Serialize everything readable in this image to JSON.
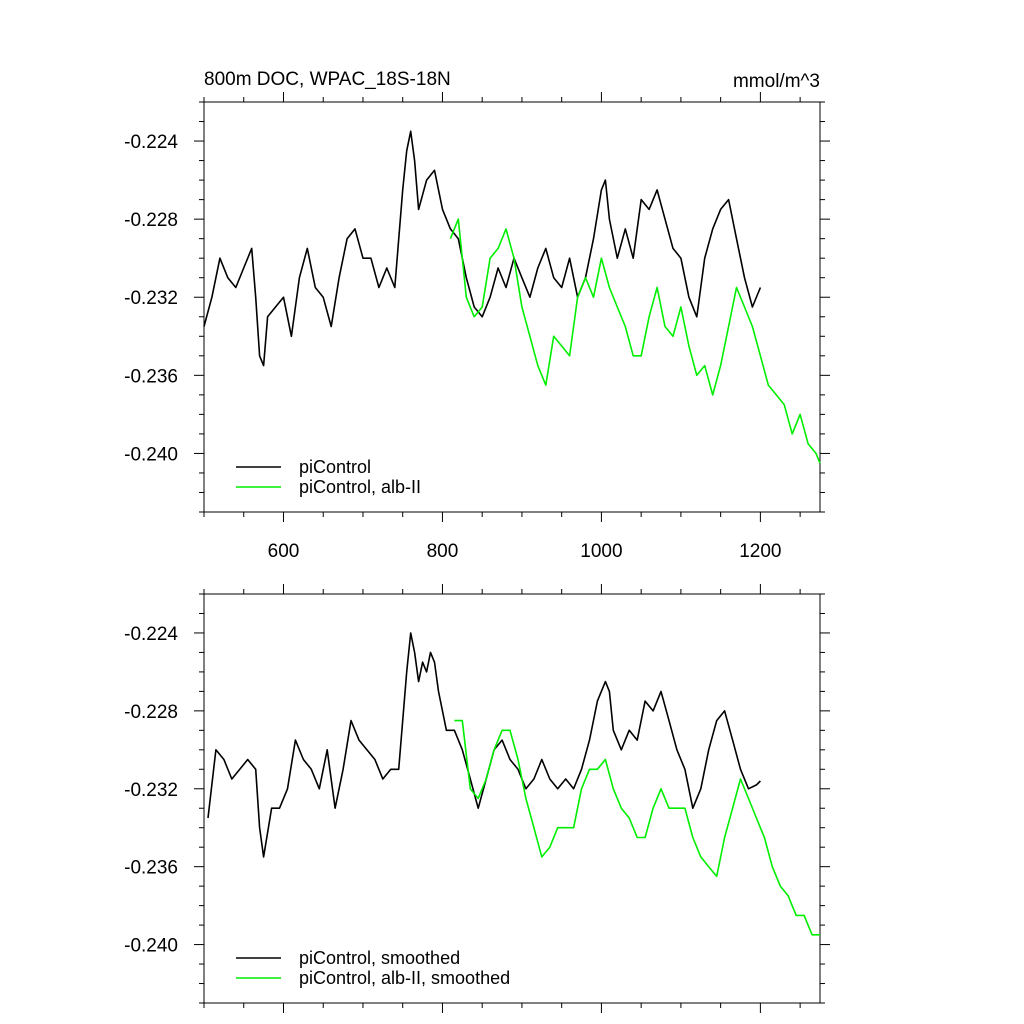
{
  "figure": {
    "title_left": "800m DOC, WPAC_18S-18N",
    "title_right": "mmol/m^3"
  },
  "chart_data": [
    {
      "type": "line",
      "title": "800m DOC, WPAC_18S-18N",
      "units": "mmol/m^3",
      "xlim": [
        500,
        1275
      ],
      "ylim": [
        -0.243,
        -0.222
      ],
      "xticks": [
        600,
        800,
        1000,
        1200
      ],
      "yticks": [
        -0.224,
        -0.228,
        -0.232,
        -0.236,
        -0.24
      ],
      "ytick_labels": [
        "-0.224",
        "-0.228",
        "-0.232",
        "-0.236",
        "-0.240"
      ],
      "xtick_labels": [
        "600",
        "800",
        "1000",
        "1200"
      ],
      "legend_position": "bottom-left",
      "series": [
        {
          "name": "piControl",
          "color": "#000000",
          "x": [
            500,
            510,
            520,
            530,
            540,
            550,
            560,
            565,
            570,
            575,
            580,
            590,
            600,
            610,
            620,
            630,
            640,
            650,
            660,
            670,
            680,
            690,
            700,
            710,
            720,
            730,
            740,
            750,
            755,
            760,
            765,
            770,
            780,
            790,
            800,
            810,
            820,
            830,
            840,
            850,
            860,
            870,
            880,
            890,
            900,
            910,
            920,
            930,
            940,
            950,
            960,
            970,
            980,
            990,
            1000,
            1005,
            1010,
            1020,
            1030,
            1040,
            1050,
            1060,
            1070,
            1080,
            1090,
            1100,
            1110,
            1120,
            1130,
            1140,
            1150,
            1160,
            1170,
            1180,
            1190,
            1200
          ],
          "y": [
            -0.2335,
            -0.232,
            -0.23,
            -0.231,
            -0.2315,
            -0.2305,
            -0.2295,
            -0.232,
            -0.235,
            -0.2355,
            -0.233,
            -0.2325,
            -0.232,
            -0.234,
            -0.231,
            -0.2295,
            -0.2315,
            -0.232,
            -0.2335,
            -0.231,
            -0.229,
            -0.2285,
            -0.23,
            -0.23,
            -0.2315,
            -0.2305,
            -0.2315,
            -0.2265,
            -0.2245,
            -0.2235,
            -0.225,
            -0.2275,
            -0.226,
            -0.2255,
            -0.2275,
            -0.2285,
            -0.229,
            -0.231,
            -0.2325,
            -0.233,
            -0.232,
            -0.2305,
            -0.2315,
            -0.23,
            -0.231,
            -0.232,
            -0.2305,
            -0.2295,
            -0.231,
            -0.2315,
            -0.23,
            -0.232,
            -0.231,
            -0.229,
            -0.2265,
            -0.226,
            -0.228,
            -0.23,
            -0.2285,
            -0.23,
            -0.227,
            -0.2275,
            -0.2265,
            -0.228,
            -0.2295,
            -0.23,
            -0.232,
            -0.233,
            -0.23,
            -0.2285,
            -0.2275,
            -0.227,
            -0.229,
            -0.231,
            -0.2325,
            -0.2315
          ]
        },
        {
          "name": "piControl, alb-II",
          "color": "#00ee00",
          "x": [
            810,
            820,
            830,
            840,
            850,
            860,
            870,
            880,
            890,
            900,
            910,
            920,
            930,
            940,
            950,
            960,
            970,
            980,
            990,
            1000,
            1010,
            1020,
            1030,
            1040,
            1050,
            1060,
            1070,
            1080,
            1090,
            1100,
            1110,
            1120,
            1130,
            1140,
            1150,
            1160,
            1170,
            1180,
            1190,
            1200,
            1210,
            1220,
            1230,
            1240,
            1250,
            1260,
            1270,
            1275
          ],
          "y": [
            -0.229,
            -0.228,
            -0.232,
            -0.233,
            -0.2325,
            -0.23,
            -0.2295,
            -0.2285,
            -0.23,
            -0.2325,
            -0.234,
            -0.2355,
            -0.2365,
            -0.234,
            -0.2345,
            -0.235,
            -0.232,
            -0.231,
            -0.232,
            -0.23,
            -0.2315,
            -0.2325,
            -0.2335,
            -0.235,
            -0.235,
            -0.233,
            -0.2315,
            -0.2335,
            -0.234,
            -0.2325,
            -0.2345,
            -0.236,
            -0.2355,
            -0.237,
            -0.2355,
            -0.2335,
            -0.2315,
            -0.2325,
            -0.2335,
            -0.235,
            -0.2365,
            -0.237,
            -0.2375,
            -0.239,
            -0.238,
            -0.2395,
            -0.24,
            -0.2405
          ]
        }
      ]
    },
    {
      "type": "line",
      "xlim": [
        500,
        1275
      ],
      "ylim": [
        -0.243,
        -0.222
      ],
      "xticks": [
        600,
        800,
        1000,
        1200
      ],
      "yticks": [
        -0.224,
        -0.228,
        -0.232,
        -0.236,
        -0.24
      ],
      "ytick_labels": [
        "-0.224",
        "-0.228",
        "-0.232",
        "-0.236",
        "-0.240"
      ],
      "legend_position": "bottom-left",
      "series": [
        {
          "name": "piControl, smoothed",
          "color": "#000000",
          "x": [
            505,
            515,
            525,
            535,
            545,
            555,
            565,
            570,
            575,
            585,
            595,
            605,
            615,
            625,
            635,
            645,
            655,
            665,
            675,
            685,
            695,
            705,
            715,
            725,
            735,
            745,
            755,
            760,
            765,
            770,
            775,
            780,
            785,
            790,
            795,
            805,
            815,
            825,
            835,
            845,
            855,
            865,
            875,
            885,
            895,
            905,
            915,
            925,
            935,
            945,
            955,
            965,
            975,
            985,
            995,
            1005,
            1010,
            1015,
            1025,
            1035,
            1045,
            1055,
            1065,
            1075,
            1085,
            1095,
            1105,
            1115,
            1125,
            1135,
            1145,
            1155,
            1165,
            1175,
            1185,
            1195,
            1200
          ],
          "y": [
            -0.2335,
            -0.23,
            -0.2305,
            -0.2315,
            -0.231,
            -0.2305,
            -0.231,
            -0.234,
            -0.2355,
            -0.233,
            -0.233,
            -0.232,
            -0.2295,
            -0.2305,
            -0.231,
            -0.232,
            -0.23,
            -0.233,
            -0.231,
            -0.2285,
            -0.2295,
            -0.23,
            -0.2305,
            -0.2315,
            -0.231,
            -0.231,
            -0.226,
            -0.224,
            -0.225,
            -0.2265,
            -0.2255,
            -0.226,
            -0.225,
            -0.2255,
            -0.227,
            -0.229,
            -0.229,
            -0.23,
            -0.2315,
            -0.233,
            -0.2315,
            -0.23,
            -0.2295,
            -0.2305,
            -0.231,
            -0.232,
            -0.2315,
            -0.2305,
            -0.2315,
            -0.232,
            -0.2315,
            -0.232,
            -0.231,
            -0.2295,
            -0.2275,
            -0.2265,
            -0.227,
            -0.229,
            -0.23,
            -0.229,
            -0.2295,
            -0.2275,
            -0.228,
            -0.227,
            -0.2285,
            -0.23,
            -0.231,
            -0.233,
            -0.232,
            -0.23,
            -0.2285,
            -0.228,
            -0.2295,
            -0.231,
            -0.232,
            -0.2318,
            -0.2316
          ]
        },
        {
          "name": "piControl, alb-II, smoothed",
          "color": "#00ee00",
          "x": [
            815,
            825,
            835,
            845,
            855,
            865,
            875,
            885,
            895,
            905,
            915,
            925,
            935,
            945,
            955,
            965,
            975,
            985,
            995,
            1005,
            1015,
            1025,
            1035,
            1045,
            1055,
            1065,
            1075,
            1085,
            1095,
            1105,
            1115,
            1125,
            1135,
            1145,
            1155,
            1165,
            1175,
            1185,
            1195,
            1205,
            1215,
            1225,
            1235,
            1245,
            1255,
            1265,
            1275
          ],
          "y": [
            -0.2285,
            -0.2285,
            -0.232,
            -0.2325,
            -0.2315,
            -0.23,
            -0.229,
            -0.229,
            -0.2305,
            -0.2325,
            -0.234,
            -0.2355,
            -0.235,
            -0.234,
            -0.234,
            -0.234,
            -0.232,
            -0.231,
            -0.231,
            -0.2305,
            -0.232,
            -0.233,
            -0.2335,
            -0.2345,
            -0.2345,
            -0.233,
            -0.232,
            -0.233,
            -0.233,
            -0.233,
            -0.2345,
            -0.2355,
            -0.236,
            -0.2365,
            -0.2345,
            -0.233,
            -0.2315,
            -0.2325,
            -0.2335,
            -0.2345,
            -0.236,
            -0.237,
            -0.2375,
            -0.2385,
            -0.2385,
            -0.2395,
            -0.2395
          ]
        }
      ]
    }
  ]
}
